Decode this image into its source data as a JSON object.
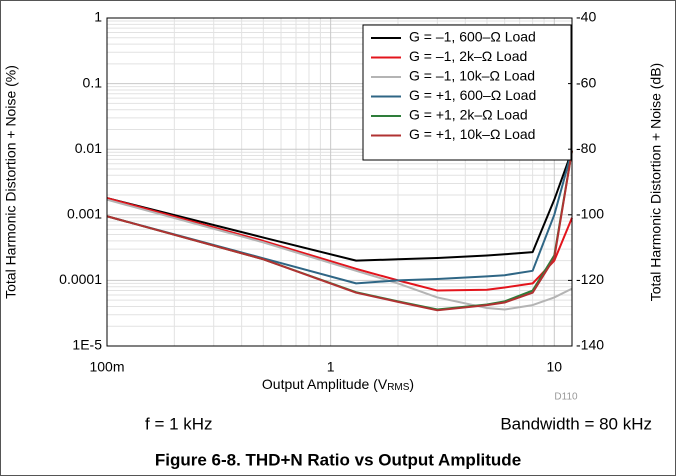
{
  "chart_data": {
    "type": "line",
    "xlabel": [
      "Output Amplitude (V",
      "RMS",
      ")"
    ],
    "ylabel": "Total Harmonic Distortion + Noise (%)",
    "y2label": "Total Harmonic Distortion + Noise (dB)",
    "log_x": true,
    "log_y": true,
    "grid": true,
    "legend": "upper right",
    "x": [
      0.1,
      0.5,
      1.3,
      2,
      3,
      5,
      6,
      8,
      10,
      12
    ],
    "xlim": [
      0.1,
      12
    ],
    "xticks": [
      {
        "value": 0.1,
        "label": "100m"
      },
      1,
      10
    ],
    "ylim": [
      1e-05,
      1
    ],
    "yticks": [
      {
        "value": 1e-05,
        "label": "1E-5"
      },
      0.0001,
      0.001,
      0.01,
      0.1,
      1
    ],
    "y2lim": [
      -140,
      -40
    ],
    "y2ticks": [
      -140,
      -120,
      -100,
      -80,
      -60,
      -40
    ],
    "series": [
      {
        "name": "G = –1, 600–Ω Load",
        "color": "#000000",
        "values": [
          0.0018,
          0.00045,
          0.0002,
          0.00021,
          0.00022,
          0.00024,
          0.00025,
          0.00027,
          0.0017,
          0.0095
        ]
      },
      {
        "name": "G = –1, 2k–Ω Load",
        "color": "#e3141c",
        "values": [
          0.0018,
          0.0004,
          0.00015,
          0.0001,
          7e-05,
          7.2e-05,
          7.8e-05,
          9e-05,
          0.0002,
          0.0009
        ]
      },
      {
        "name": "G = –1, 10k–Ω Load",
        "color": "#b4b4b4",
        "values": [
          0.0017,
          0.00038,
          0.00014,
          9e-05,
          5.5e-05,
          3.8e-05,
          3.6e-05,
          4.2e-05,
          5.5e-05,
          7.5e-05
        ]
      },
      {
        "name": "G = +1, 600–Ω Load",
        "color": "#2f6685",
        "values": [
          0.00095,
          0.000217,
          9e-05,
          0.0001,
          0.000105,
          0.000115,
          0.00012,
          0.00014,
          0.001,
          0.0095
        ]
      },
      {
        "name": "G = +1, 2k–Ω Load",
        "color": "#2e7d3a",
        "values": [
          0.00095,
          0.00021,
          6.6e-05,
          4.8e-05,
          3.6e-05,
          4.3e-05,
          4.8e-05,
          7e-05,
          0.00024,
          0.0095
        ]
      },
      {
        "name": "G = +1, 10k–Ω Load",
        "color": "#b03232",
        "values": [
          0.00095,
          0.00021,
          6.5e-05,
          4.7e-05,
          3.5e-05,
          4.2e-05,
          4.6e-05,
          6.5e-05,
          0.00022,
          0.0095
        ]
      }
    ],
    "annotations": [
      "D110",
      "f = 1 kHz",
      "Bandwidth = 80 kHz"
    ],
    "caption": "Figure 6-8. THD+N Ratio vs Output Amplitude"
  }
}
